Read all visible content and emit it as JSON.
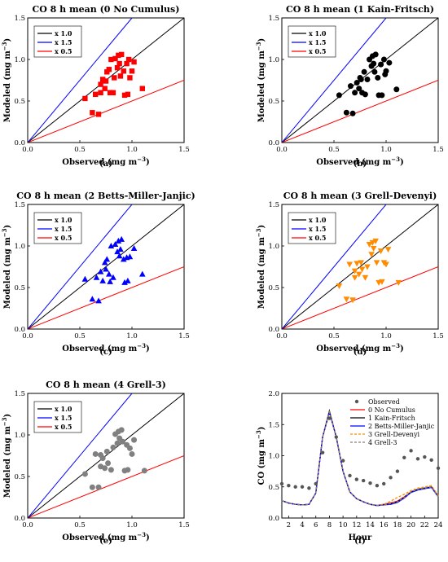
{
  "colors": {
    "ratio_1_0": "#000000",
    "ratio_1_5": "#0000ff",
    "ratio_0_5": "#ff0000",
    "exp0": "#ff0000",
    "exp1": "#000000",
    "exp2": "#0000ff",
    "exp3": "#ff8c00",
    "exp4": "#808080",
    "observed": "#555555"
  },
  "chart_data": [
    {
      "type": "scatter",
      "panel_label": "(a)",
      "title": "CO 8 h mean (0 No Cumulus)",
      "xlabel": "Observed (mg m",
      "ylabel": "Modeled (mg m",
      "unit_exponent": "−3",
      "unit_close": ")",
      "xlim": [
        0,
        1.5
      ],
      "ylim": [
        0,
        1.5
      ],
      "xticks": [
        "0.0",
        "0.5",
        "1.0",
        "1.5"
      ],
      "yticks": [
        "0.0",
        "0.5",
        "1.0",
        "1.5"
      ],
      "marker": "square",
      "color_key": "exp0",
      "legend": [
        "x 1.0",
        "x 1.5",
        "x 0.5"
      ],
      "points": [
        [
          0.55,
          0.53
        ],
        [
          0.62,
          0.36
        ],
        [
          0.68,
          0.34
        ],
        [
          0.65,
          0.58
        ],
        [
          0.7,
          0.7
        ],
        [
          0.7,
          0.6
        ],
        [
          0.72,
          0.76
        ],
        [
          0.74,
          0.65
        ],
        [
          0.75,
          0.74
        ],
        [
          0.76,
          0.85
        ],
        [
          0.78,
          0.88
        ],
        [
          0.79,
          0.6
        ],
        [
          0.8,
          1.0
        ],
        [
          0.82,
          0.6
        ],
        [
          0.83,
          0.78
        ],
        [
          0.84,
          1.01
        ],
        [
          0.86,
          0.9
        ],
        [
          0.87,
          1.05
        ],
        [
          0.88,
          0.95
        ],
        [
          0.89,
          0.8
        ],
        [
          0.9,
          1.06
        ],
        [
          0.92,
          0.86
        ],
        [
          0.93,
          0.57
        ],
        [
          0.95,
          0.95
        ],
        [
          0.96,
          0.58
        ],
        [
          0.97,
          1.0
        ],
        [
          0.98,
          0.78
        ],
        [
          1.0,
          0.86
        ],
        [
          1.02,
          0.97
        ],
        [
          1.1,
          0.65
        ]
      ]
    },
    {
      "type": "scatter",
      "panel_label": "(b)",
      "title": "CO 8 h mean (1 Kain-Fritsch)",
      "xlabel": "Observed (mg m",
      "ylabel": "Modeled (mg m",
      "unit_exponent": "−3",
      "unit_close": ")",
      "xlim": [
        0,
        1.5
      ],
      "ylim": [
        0,
        1.5
      ],
      "xticks": [
        "0.0",
        "0.5",
        "1.0",
        "1.5"
      ],
      "yticks": [
        "0.0",
        "0.5",
        "1.0",
        "1.5"
      ],
      "marker": "circle",
      "color_key": "exp1",
      "legend": [
        "x 1.0",
        "x 1.5",
        "x 0.5"
      ],
      "points": [
        [
          0.55,
          0.57
        ],
        [
          0.62,
          0.36
        ],
        [
          0.68,
          0.35
        ],
        [
          0.66,
          0.68
        ],
        [
          0.7,
          0.6
        ],
        [
          0.72,
          0.72
        ],
        [
          0.74,
          0.65
        ],
        [
          0.75,
          0.78
        ],
        [
          0.76,
          0.76
        ],
        [
          0.77,
          0.6
        ],
        [
          0.79,
          0.85
        ],
        [
          0.8,
          0.58
        ],
        [
          0.82,
          0.76
        ],
        [
          0.84,
          1.0
        ],
        [
          0.86,
          0.92
        ],
        [
          0.87,
          1.04
        ],
        [
          0.88,
          0.95
        ],
        [
          0.89,
          0.85
        ],
        [
          0.9,
          1.06
        ],
        [
          0.92,
          0.78
        ],
        [
          0.93,
          0.57
        ],
        [
          0.95,
          0.94
        ],
        [
          0.96,
          0.57
        ],
        [
          0.98,
          1.0
        ],
        [
          0.99,
          0.82
        ],
        [
          1.0,
          0.86
        ],
        [
          1.03,
          0.96
        ],
        [
          1.1,
          0.64
        ]
      ]
    },
    {
      "type": "scatter",
      "panel_label": "(c)",
      "title": "CO 8 h mean (2 Betts-Miller-Janjic)",
      "xlabel": "Observed (mg m",
      "ylabel": "Modeled (mg m",
      "unit_exponent": "−3",
      "unit_close": ")",
      "xlim": [
        0,
        1.5
      ],
      "ylim": [
        0,
        1.5
      ],
      "xticks": [
        "0.0",
        "0.5",
        "1.0",
        "1.5"
      ],
      "yticks": [
        "0.0",
        "0.5",
        "1.0",
        "1.5"
      ],
      "marker": "triangle-up",
      "color_key": "exp2",
      "legend": [
        "x 1.0",
        "x 1.5",
        "x 0.5"
      ],
      "points": [
        [
          0.55,
          0.6
        ],
        [
          0.62,
          0.36
        ],
        [
          0.68,
          0.34
        ],
        [
          0.66,
          0.62
        ],
        [
          0.7,
          0.69
        ],
        [
          0.72,
          0.58
        ],
        [
          0.74,
          0.8
        ],
        [
          0.75,
          0.72
        ],
        [
          0.76,
          0.84
        ],
        [
          0.78,
          0.66
        ],
        [
          0.79,
          0.57
        ],
        [
          0.8,
          1.0
        ],
        [
          0.82,
          0.62
        ],
        [
          0.84,
          1.02
        ],
        [
          0.86,
          0.93
        ],
        [
          0.87,
          1.06
        ],
        [
          0.88,
          0.88
        ],
        [
          0.89,
          0.96
        ],
        [
          0.9,
          1.08
        ],
        [
          0.92,
          0.84
        ],
        [
          0.93,
          0.56
        ],
        [
          0.95,
          0.86
        ],
        [
          0.96,
          0.58
        ],
        [
          0.98,
          0.87
        ],
        [
          1.02,
          0.97
        ],
        [
          1.1,
          0.66
        ]
      ]
    },
    {
      "type": "scatter",
      "panel_label": "(d)",
      "title": "CO 8 h mean (3 Grell-Devenyi)",
      "xlabel": "Observed (mg m",
      "ylabel": "Modeled (mg m",
      "unit_exponent": "−3",
      "unit_close": ")",
      "xlim": [
        0,
        1.5
      ],
      "ylim": [
        0,
        1.5
      ],
      "xticks": [
        "0.0",
        "0.5",
        "1.0",
        "1.5"
      ],
      "yticks": [
        "0.0",
        "0.5",
        "1.0",
        "1.5"
      ],
      "marker": "triangle-down",
      "color_key": "exp3",
      "legend": [
        "x 1.0",
        "x 1.5",
        "x 0.5"
      ],
      "points": [
        [
          0.55,
          0.52
        ],
        [
          0.62,
          0.36
        ],
        [
          0.68,
          0.35
        ],
        [
          0.65,
          0.78
        ],
        [
          0.7,
          0.7
        ],
        [
          0.7,
          0.62
        ],
        [
          0.72,
          0.79
        ],
        [
          0.74,
          0.66
        ],
        [
          0.76,
          0.8
        ],
        [
          0.77,
          0.72
        ],
        [
          0.8,
          0.62
        ],
        [
          0.82,
          0.75
        ],
        [
          0.84,
          1.02
        ],
        [
          0.86,
          0.9
        ],
        [
          0.87,
          1.04
        ],
        [
          0.88,
          0.97
        ],
        [
          0.9,
          1.06
        ],
        [
          0.91,
          0.8
        ],
        [
          0.93,
          0.56
        ],
        [
          0.95,
          0.94
        ],
        [
          0.96,
          0.57
        ],
        [
          0.98,
          0.8
        ],
        [
          1.0,
          0.78
        ],
        [
          1.02,
          0.96
        ],
        [
          1.12,
          0.56
        ]
      ]
    },
    {
      "type": "scatter",
      "panel_label": "(e)",
      "title": "CO 8 h mean (4 Grell-3)",
      "xlabel": "Observed (mg m",
      "ylabel": "Modeled (mg m",
      "unit_exponent": "−3",
      "unit_close": ")",
      "xlim": [
        0,
        1.5
      ],
      "ylim": [
        0,
        1.5
      ],
      "xticks": [
        "0.0",
        "0.5",
        "1.0",
        "1.5"
      ],
      "yticks": [
        "0.0",
        "0.5",
        "1.0",
        "1.5"
      ],
      "marker": "circle",
      "color_key": "exp4",
      "legend": [
        "x 1.0",
        "x 1.5",
        "x 0.5"
      ],
      "points": [
        [
          0.55,
          0.53
        ],
        [
          0.62,
          0.37
        ],
        [
          0.68,
          0.37
        ],
        [
          0.65,
          0.77
        ],
        [
          0.7,
          0.76
        ],
        [
          0.7,
          0.62
        ],
        [
          0.72,
          0.72
        ],
        [
          0.74,
          0.6
        ],
        [
          0.76,
          0.8
        ],
        [
          0.77,
          0.66
        ],
        [
          0.8,
          0.58
        ],
        [
          0.82,
          0.85
        ],
        [
          0.84,
          1.01
        ],
        [
          0.86,
          0.9
        ],
        [
          0.87,
          1.04
        ],
        [
          0.88,
          0.96
        ],
        [
          0.9,
          1.06
        ],
        [
          0.91,
          0.92
        ],
        [
          0.93,
          0.57
        ],
        [
          0.95,
          0.88
        ],
        [
          0.96,
          0.58
        ],
        [
          0.98,
          0.84
        ],
        [
          1.0,
          0.77
        ],
        [
          1.02,
          0.94
        ],
        [
          1.12,
          0.57
        ]
      ]
    },
    {
      "type": "line",
      "panel_label": "(f)",
      "xlabel": "Hour",
      "ylabel": "CO (mg m",
      "unit_exponent": "−3",
      "unit_close": ")",
      "xlim": [
        1,
        24
      ],
      "ylim": [
        0,
        2.0
      ],
      "xticks": [
        "2",
        "4",
        "6",
        "8",
        "10",
        "12",
        "14",
        "16",
        "18",
        "20",
        "22",
        "24"
      ],
      "yticks": [
        "0.0",
        "0.5",
        "1.0",
        "1.5",
        "2.0"
      ],
      "x": [
        1,
        2,
        3,
        4,
        5,
        6,
        7,
        8,
        9,
        10,
        11,
        12,
        13,
        14,
        15,
        16,
        17,
        18,
        19,
        20,
        21,
        22,
        23,
        24
      ],
      "observed": {
        "name": "Observed",
        "color_key": "observed",
        "values": [
          0.55,
          0.52,
          0.5,
          0.5,
          0.48,
          0.55,
          1.05,
          1.6,
          1.3,
          0.92,
          0.68,
          0.62,
          0.6,
          0.56,
          0.52,
          0.55,
          0.65,
          0.75,
          0.97,
          1.08,
          0.95,
          0.98,
          0.93,
          0.8
        ]
      },
      "series": [
        {
          "name": "0 No Cumulus",
          "color_key": "exp0",
          "dash": "solid",
          "values": [
            0.28,
            0.24,
            0.22,
            0.21,
            0.22,
            0.4,
            1.3,
            1.7,
            1.3,
            0.75,
            0.42,
            0.31,
            0.26,
            0.22,
            0.2,
            0.22,
            0.24,
            0.27,
            0.34,
            0.42,
            0.46,
            0.48,
            0.5,
            0.35
          ]
        },
        {
          "name": "1 Kain-Fritsch",
          "color_key": "exp1",
          "dash": "solid",
          "values": [
            0.28,
            0.24,
            0.22,
            0.21,
            0.22,
            0.4,
            1.3,
            1.72,
            1.3,
            0.75,
            0.42,
            0.31,
            0.26,
            0.22,
            0.2,
            0.21,
            0.23,
            0.26,
            0.33,
            0.42,
            0.46,
            0.48,
            0.5,
            0.35
          ]
        },
        {
          "name": "2 Betts-Miller-Janjic",
          "color_key": "exp2",
          "dash": "solid",
          "values": [
            0.28,
            0.24,
            0.22,
            0.21,
            0.22,
            0.4,
            1.3,
            1.7,
            1.3,
            0.75,
            0.42,
            0.31,
            0.26,
            0.22,
            0.2,
            0.21,
            0.22,
            0.25,
            0.32,
            0.41,
            0.45,
            0.47,
            0.49,
            0.34
          ]
        },
        {
          "name": "3 Grell-Devenyi",
          "color_key": "exp3",
          "dash": "dash",
          "values": [
            0.28,
            0.24,
            0.22,
            0.21,
            0.22,
            0.4,
            1.3,
            1.7,
            1.3,
            0.75,
            0.42,
            0.31,
            0.26,
            0.22,
            0.2,
            0.22,
            0.27,
            0.33,
            0.38,
            0.44,
            0.48,
            0.5,
            0.52,
            0.36
          ]
        },
        {
          "name": "4 Grell-3",
          "color_key": "exp4",
          "dash": "dash",
          "values": [
            0.28,
            0.24,
            0.22,
            0.21,
            0.22,
            0.4,
            1.3,
            1.7,
            1.3,
            0.75,
            0.42,
            0.31,
            0.26,
            0.22,
            0.2,
            0.21,
            0.23,
            0.26,
            0.33,
            0.42,
            0.46,
            0.48,
            0.5,
            0.34
          ]
        }
      ],
      "legend_placement": "top-right"
    }
  ]
}
